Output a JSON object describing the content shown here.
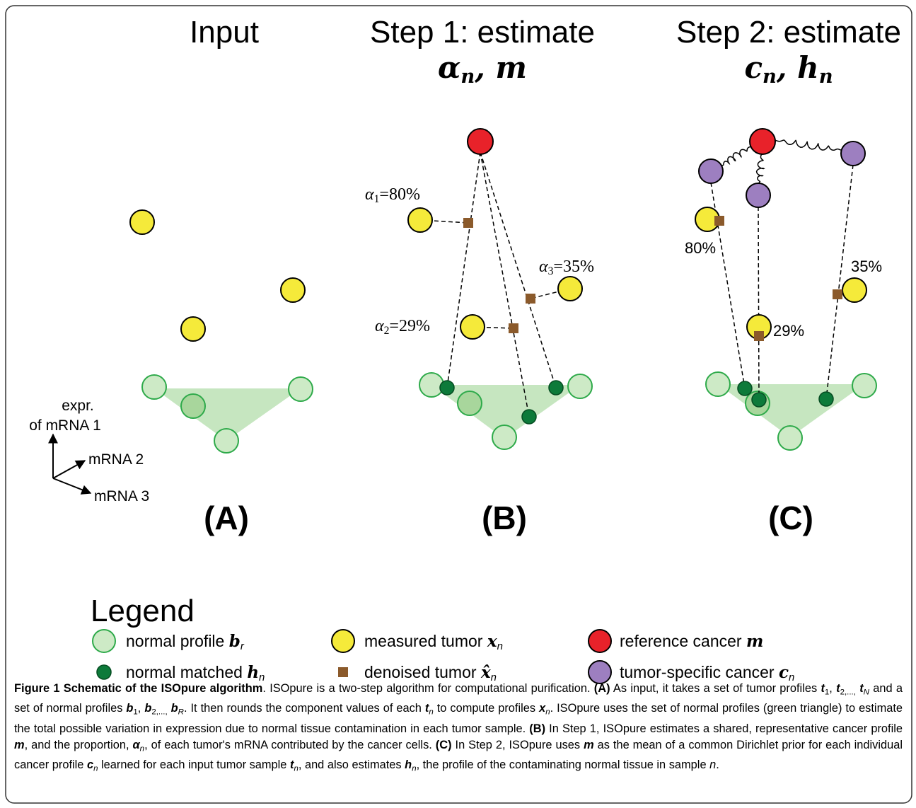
{
  "panels": [
    {
      "title": "Input",
      "label": "(A)"
    },
    {
      "title": "Step 1: estimate",
      "math": [
        [
          "α",
          "bi"
        ],
        [
          "n",
          "isub"
        ],
        [
          ", ",
          ""
        ],
        [
          "m",
          "bi"
        ]
      ],
      "label": "(B)"
    },
    {
      "title": "Step 2: estimate",
      "math": [
        [
          "c",
          "bi"
        ],
        [
          "n",
          "isub"
        ],
        [
          ", ",
          ""
        ],
        [
          "h",
          "bi"
        ],
        [
          "n",
          "isub"
        ]
      ],
      "label": "(C)"
    }
  ],
  "axis_labels": [
    "expr.",
    "of mRNA 1",
    "mRNA 2",
    "mRNA 3"
  ],
  "step1_annotations": [
    [
      [
        "α",
        "i"
      ],
      [
        "1",
        "sub"
      ],
      [
        "=80%",
        ""
      ]
    ],
    [
      [
        "α",
        "i"
      ],
      [
        "3",
        "sub"
      ],
      [
        "=35%",
        ""
      ]
    ],
    [
      [
        "α",
        "i"
      ],
      [
        "2",
        "sub"
      ],
      [
        "=29%",
        ""
      ]
    ]
  ],
  "step2_annotations": [
    "80%",
    "35%",
    "29%"
  ],
  "legend": {
    "title": "Legend",
    "entries": [
      [
        [
          "normal profile ",
          ""
        ],
        [
          "b",
          "bi"
        ],
        [
          "r",
          "isub"
        ]
      ],
      [
        [
          "measured tumor ",
          ""
        ],
        [
          "x",
          "bi"
        ],
        [
          "n",
          "isub"
        ]
      ],
      [
        [
          "reference cancer ",
          ""
        ],
        [
          "m",
          "bi"
        ]
      ],
      [
        [
          "normal matched ",
          ""
        ],
        [
          "h",
          "bi"
        ],
        [
          "n",
          "isub"
        ]
      ],
      [
        [
          "denoised tumor ",
          ""
        ],
        [
          "x̂",
          "bi"
        ],
        [
          "n",
          "isub"
        ]
      ],
      [
        [
          "tumor-specific cancer ",
          ""
        ],
        [
          "c",
          "bi"
        ],
        [
          "n",
          "isub"
        ]
      ]
    ]
  },
  "caption": [
    [
      "Figure 1 Schematic of the ISOpure algorithm",
      "b"
    ],
    [
      ". ISOpure is a two-step algorithm for computational purification. ",
      ""
    ],
    [
      "(A)",
      "b"
    ],
    [
      " As input, it takes a set of tumor profiles ",
      ""
    ],
    [
      "t",
      "bi"
    ],
    [
      "1",
      "sub"
    ],
    [
      ", ",
      ""
    ],
    [
      "t",
      "bi"
    ],
    [
      "2,...,",
      "sub"
    ],
    [
      " ",
      ""
    ],
    [
      "t",
      "bi"
    ],
    [
      "N",
      "isub"
    ],
    [
      " and a set of normal profiles ",
      ""
    ],
    [
      "b",
      "bi"
    ],
    [
      "1",
      "sub"
    ],
    [
      ", ",
      ""
    ],
    [
      "b",
      "bi"
    ],
    [
      "2,...,",
      "sub"
    ],
    [
      " ",
      ""
    ],
    [
      "b",
      "bi"
    ],
    [
      "R",
      "isub"
    ],
    [
      ". It then rounds the component values of each ",
      ""
    ],
    [
      "t",
      "bi"
    ],
    [
      "n",
      "isub"
    ],
    [
      " to compute profiles ",
      ""
    ],
    [
      "x",
      "bi"
    ],
    [
      "n",
      "isub"
    ],
    [
      ". ISOpure uses the set of normal profiles (green triangle) to estimate the total possible variation in expression due to normal tissue contamination in each tumor sample. ",
      ""
    ],
    [
      "(B)",
      "b"
    ],
    [
      " In Step 1, ISOpure estimates a shared, representative cancer profile ",
      ""
    ],
    [
      "m",
      "bi"
    ],
    [
      ", and the proportion, ",
      ""
    ],
    [
      "α",
      "bi"
    ],
    [
      "n",
      "isub"
    ],
    [
      ", of each tumor's mRNA contributed by the cancer cells. ",
      ""
    ],
    [
      "(C)",
      "b"
    ],
    [
      " In Step 2, ISOpure uses ",
      ""
    ],
    [
      "m",
      "bi"
    ],
    [
      " as the mean of a common Dirichlet prior for each individual cancer profile ",
      ""
    ],
    [
      "c",
      "bi"
    ],
    [
      "n",
      "isub"
    ],
    [
      " learned for each input tumor sample ",
      ""
    ],
    [
      "t",
      "bi"
    ],
    [
      "n",
      "isub"
    ],
    [
      ", and also estimates ",
      ""
    ],
    [
      "h",
      "bi"
    ],
    [
      "n",
      "isub"
    ],
    [
      ", the profile of the contaminating normal tissue in sample ",
      ""
    ],
    [
      "n",
      "i"
    ],
    [
      ".",
      ""
    ]
  ]
}
